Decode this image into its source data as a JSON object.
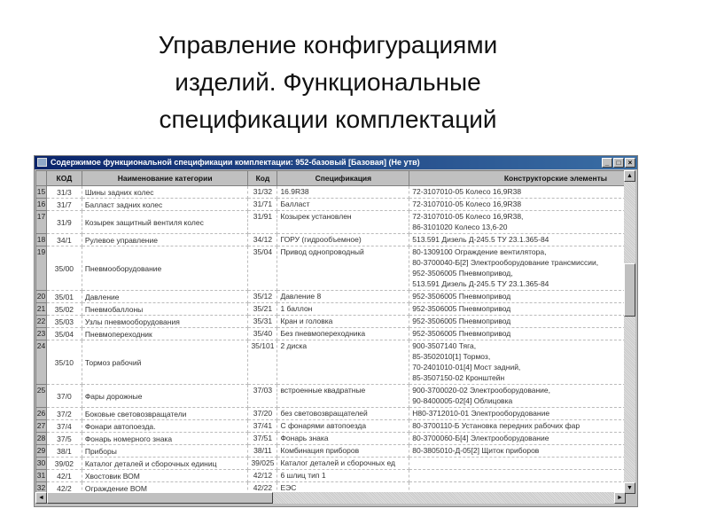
{
  "slide_title": "Управление конфигурациями изделий. Функциональные спецификации комплектаций",
  "window": {
    "title": "Содержимое функциональной спецификации комплектации: 952-базовый [Базовая]  (Не утв)",
    "minimize": "_",
    "maximize": "□",
    "close": "×"
  },
  "columns": [
    "",
    "КОД",
    "Наименование категории",
    "Код",
    "Спецификация",
    "Конструкторские элементы"
  ],
  "rows": [
    {
      "n": "15",
      "kod": "31/3",
      "name": "Шины задних колес",
      "kod2": "31/32",
      "spec": "16.9R38",
      "el": [
        "72-3107010-05 Колесо 16,9R38"
      ]
    },
    {
      "n": "16",
      "kod": "31/7",
      "name": "Балласт задних колес",
      "kod2": "31/71",
      "spec": "Балласт",
      "el": [
        "72-3107010-05 Колесо 16,9R38"
      ]
    },
    {
      "n": "17",
      "kod": "31/9",
      "name": "Козырек защитный вентиля колес",
      "kod2": "31/91",
      "spec": "Козырек установлен",
      "el": [
        "72-3107010-05 Колесо 16,9R38,",
        "86-3101020 Колесо 13,6-20"
      ]
    },
    {
      "n": "18",
      "kod": "34/1",
      "name": "Рулевое управление",
      "kod2": "34/12",
      "spec": "ГОРУ (гидрообъемное)",
      "el": [
        "513.591 Дизель Д-245.5 ТУ 23.1.365-84"
      ]
    },
    {
      "n": "19",
      "kod": "35/00",
      "name": "Пневмооборудование",
      "kod2": "35/04",
      "spec": "Привод однопроводный",
      "el": [
        "80-1309100 Ограждение вентилятора,",
        "80-3700040-Б[2] Электрооборудование трансмиссии,",
        "952-3506005 Пневмопривод,",
        "513.591 Дизель Д-245.5 ТУ 23.1.365-84"
      ]
    },
    {
      "n": "20",
      "kod": "35/01",
      "name": "Давление",
      "kod2": "35/12",
      "spec": "Давление 8",
      "el": [
        "952-3506005 Пневмопривод"
      ]
    },
    {
      "n": "21",
      "kod": "35/02",
      "name": "Пневмобаллоны",
      "kod2": "35/21",
      "spec": "1 баллон",
      "el": [
        "952-3506005 Пневмопривод"
      ]
    },
    {
      "n": "22",
      "kod": "35/03",
      "name": "Узлы пневмооборудования",
      "kod2": "35/31",
      "spec": "Кран и головка",
      "el": [
        "952-3506005 Пневмопривод"
      ]
    },
    {
      "n": "23",
      "kod": "35/04",
      "name": "Пневмопереходник",
      "kod2": "35/40",
      "spec": "Без пневмопереходника",
      "el": [
        "952-3506005 Пневмопривод"
      ]
    },
    {
      "n": "24",
      "kod": "35/10",
      "name": "Тормоз рабочий",
      "kod2": "35/101",
      "spec": "2 диска",
      "el": [
        "900-3507140 Тяга,",
        "85-3502010[1] Тормоз,",
        "70-2401010-01[4] Мост задний,",
        "85-3507150-02 Кронштейн"
      ]
    },
    {
      "n": "25",
      "kod": "37/0",
      "name": "Фары дорожные",
      "kod2": "37/03",
      "spec": "встроенные квадратные",
      "el": [
        "900-3700020-02 Электрооборудование,",
        "90-8400005-02[4] Облицовка"
      ]
    },
    {
      "n": "26",
      "kod": "37/2",
      "name": "Боковые световозвращатели",
      "kod2": "37/20",
      "spec": "без световозвращателей",
      "el": [
        "Н80-3712010-01  Электрооборудование"
      ]
    },
    {
      "n": "27",
      "kod": "37/4",
      "name": "Фонари автопоезда.",
      "kod2": "37/41",
      "spec": "С фонарями автопоезда",
      "el": [
        "80-3700110-Б Установка передних рабочих фар"
      ]
    },
    {
      "n": "28",
      "kod": "37/5",
      "name": "Фонарь номерного знака",
      "kod2": "37/51",
      "spec": "Фонарь знака",
      "el": [
        "80-3700060-Б[4] Электрооборудование"
      ]
    },
    {
      "n": "29",
      "kod": "38/1",
      "name": "Приборы",
      "kod2": "38/11",
      "spec": "Комбинация приборов",
      "el": [
        "80-3805010-Д-05[2] Щиток приборов"
      ]
    },
    {
      "n": "30",
      "kod": "39/02",
      "name": "Каталог деталей и сборочных единиц",
      "kod2": "39/025",
      "spec": "Каталог деталей и сборочных ед",
      "el": [
        ""
      ]
    },
    {
      "n": "31",
      "kod": "42/1",
      "name": "Хвостовик ВОМ",
      "kod2": "42/12",
      "spec": "6 шлиц тип 1",
      "el": [
        ""
      ]
    },
    {
      "n": "32",
      "kod": "42/2",
      "name": "Ограждение ВОМ",
      "kod2": "42/22",
      "spec": "ЕЭС",
      "el": [
        ""
      ]
    }
  ]
}
